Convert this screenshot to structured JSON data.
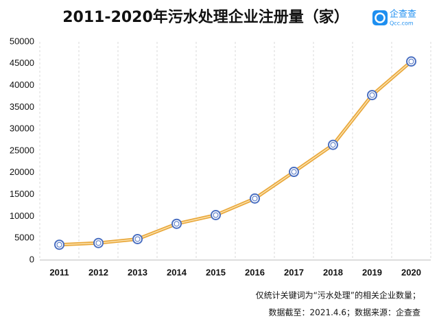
{
  "chart_data": {
    "type": "line",
    "title": "2011-2020年污水处理企业注册量（家）",
    "logo": {
      "name": "企查查",
      "url": "Qcc.com"
    },
    "categories": [
      "2011",
      "2012",
      "2013",
      "2014",
      "2015",
      "2016",
      "2017",
      "2018",
      "2019",
      "2020"
    ],
    "series": [
      {
        "color": "#e9a83c",
        "values": [
          3500,
          3900,
          4800,
          8300,
          10300,
          14100,
          20200,
          26400,
          37800,
          45500
        ]
      }
    ],
    "marker_color": "#4a6fc1",
    "ylim": [
      0,
      50000
    ],
    "yticks": [
      0,
      5000,
      10000,
      15000,
      20000,
      25000,
      30000,
      35000,
      40000,
      45000,
      50000
    ],
    "notes": [
      "仅统计关键词为“污水处理”的相关企业数量；",
      "数据截至：2021.4.6；数据来源：企查查"
    ]
  }
}
